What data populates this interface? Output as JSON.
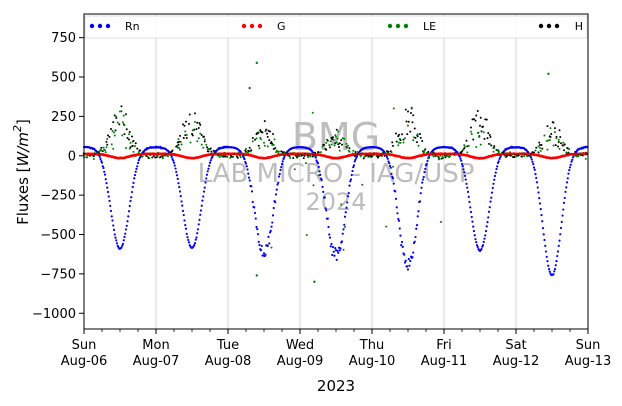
{
  "chart_data": {
    "type": "scatter",
    "title": "",
    "xlabel": "2023",
    "ylabel": "Fluxes [W/m²]",
    "ylabel_parts": {
      "main": "Fluxes [",
      "unit": "W/m",
      "sup": "2",
      "close": "]"
    },
    "ylim": [
      -1100,
      900
    ],
    "yticks": [
      -1000,
      -750,
      -500,
      -250,
      0,
      250,
      500,
      750
    ],
    "xlim_days": [
      0,
      7
    ],
    "xticks": [
      {
        "day": 0,
        "line1": "Sun",
        "line2": "Aug-06"
      },
      {
        "day": 1,
        "line1": "Mon",
        "line2": "Aug-07"
      },
      {
        "day": 2,
        "line1": "Tue",
        "line2": "Aug-08"
      },
      {
        "day": 3,
        "line1": "Wed",
        "line2": "Aug-09"
      },
      {
        "day": 4,
        "line1": "Thu",
        "line2": "Aug-10"
      },
      {
        "day": 5,
        "line1": "Fri",
        "line2": "Aug-11"
      },
      {
        "day": 6,
        "line1": "Sat",
        "line2": "Aug-12"
      },
      {
        "day": 7,
        "line1": "Sun",
        "line2": "Aug-13"
      }
    ],
    "grid": "vertical",
    "legend_position": "top",
    "series": [
      {
        "name": "Rn",
        "color": "#0000ff",
        "night_value": 55,
        "daily_min": [
          -590,
          -585,
          -630,
          -650,
          -700,
          -600,
          -760
        ]
      },
      {
        "name": "G",
        "color": "#ff0000",
        "day_value": -15,
        "night_value": 12
      },
      {
        "name": "LE",
        "color": "#008000",
        "spread": [
          -800,
          590
        ]
      },
      {
        "name": "H",
        "color": "#000000",
        "day_peak": [
          300,
          290,
          200,
          160,
          300,
          280,
          200
        ]
      }
    ],
    "watermark": {
      "line1": "BMG",
      "line2": "LAB MICRO - IAG/USP",
      "line3": "2024"
    }
  }
}
